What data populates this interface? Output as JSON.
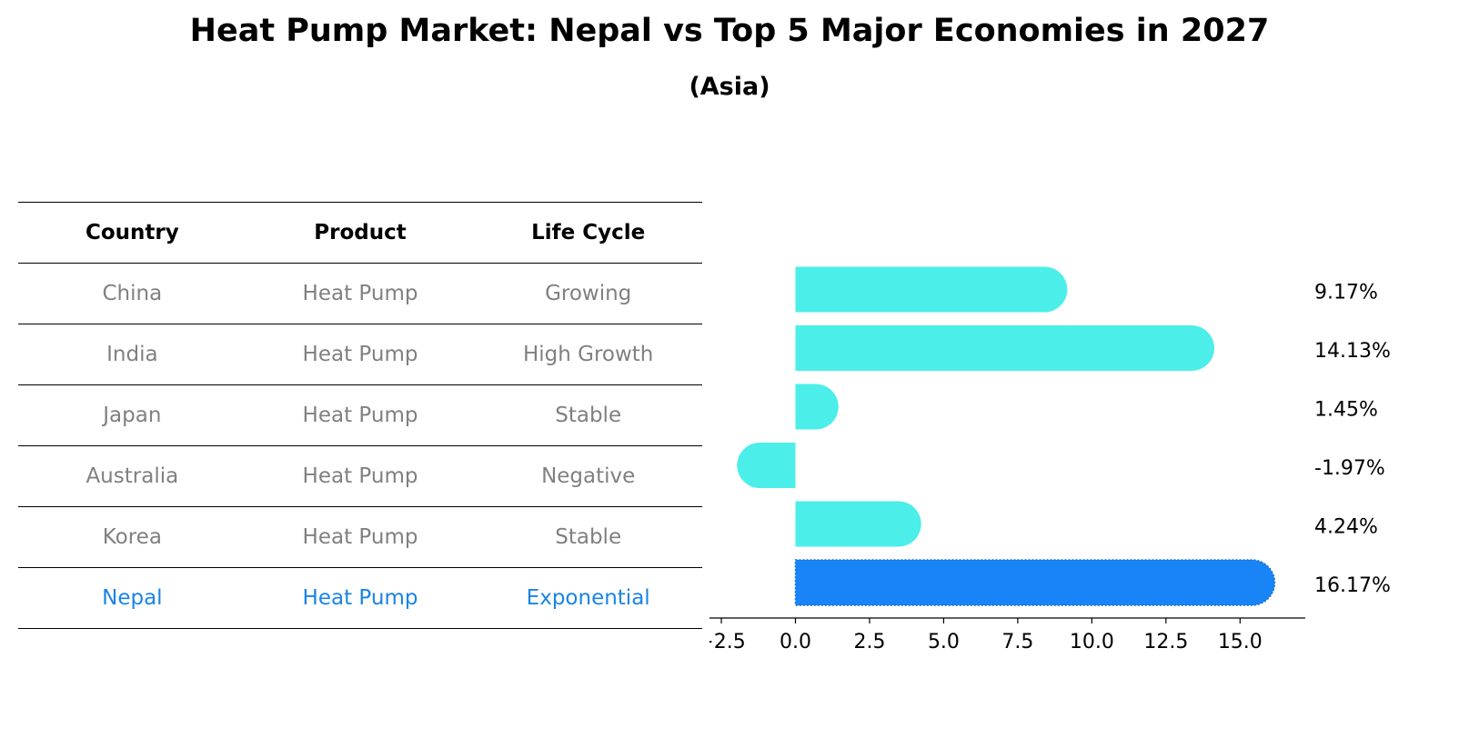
{
  "title": "Heat Pump Market: Nepal vs Top 5 Major Economies in 2027",
  "subtitle": "(Asia)",
  "table": {
    "headers": [
      "Country",
      "Product",
      "Life Cycle"
    ],
    "rows": [
      {
        "country": "China",
        "product": "Heat Pump",
        "lifecycle": "Growing"
      },
      {
        "country": "India",
        "product": "Heat Pump",
        "lifecycle": "High Growth"
      },
      {
        "country": "Japan",
        "product": "Heat Pump",
        "lifecycle": "Stable"
      },
      {
        "country": "Australia",
        "product": "Heat Pump",
        "lifecycle": "Negative"
      },
      {
        "country": "Korea",
        "product": "Heat Pump",
        "lifecycle": "Stable"
      },
      {
        "country": "Nepal",
        "product": "Heat Pump",
        "lifecycle": "Exponential"
      }
    ],
    "highlight_country": "Nepal"
  },
  "chart_data": {
    "type": "bar",
    "orientation": "horizontal",
    "categories": [
      "China",
      "India",
      "Japan",
      "Australia",
      "Korea",
      "Nepal"
    ],
    "values": [
      9.17,
      14.13,
      1.45,
      -1.97,
      4.24,
      16.17
    ],
    "value_labels": [
      "9.17%",
      "14.13%",
      "1.45%",
      "-1.97%",
      "4.24%",
      "16.17%"
    ],
    "xlim": [
      -2.9,
      17.2
    ],
    "xticks": [
      -2.5,
      0.0,
      2.5,
      5.0,
      7.5,
      10.0,
      12.5,
      15.0
    ],
    "xtick_labels": [
      "−2.5",
      "0.0",
      "2.5",
      "5.0",
      "7.5",
      "10.0",
      "12.5",
      "15.0"
    ],
    "colors": {
      "default": "#4beee9",
      "highlight": "#1984f5"
    },
    "highlight_index": 5
  }
}
